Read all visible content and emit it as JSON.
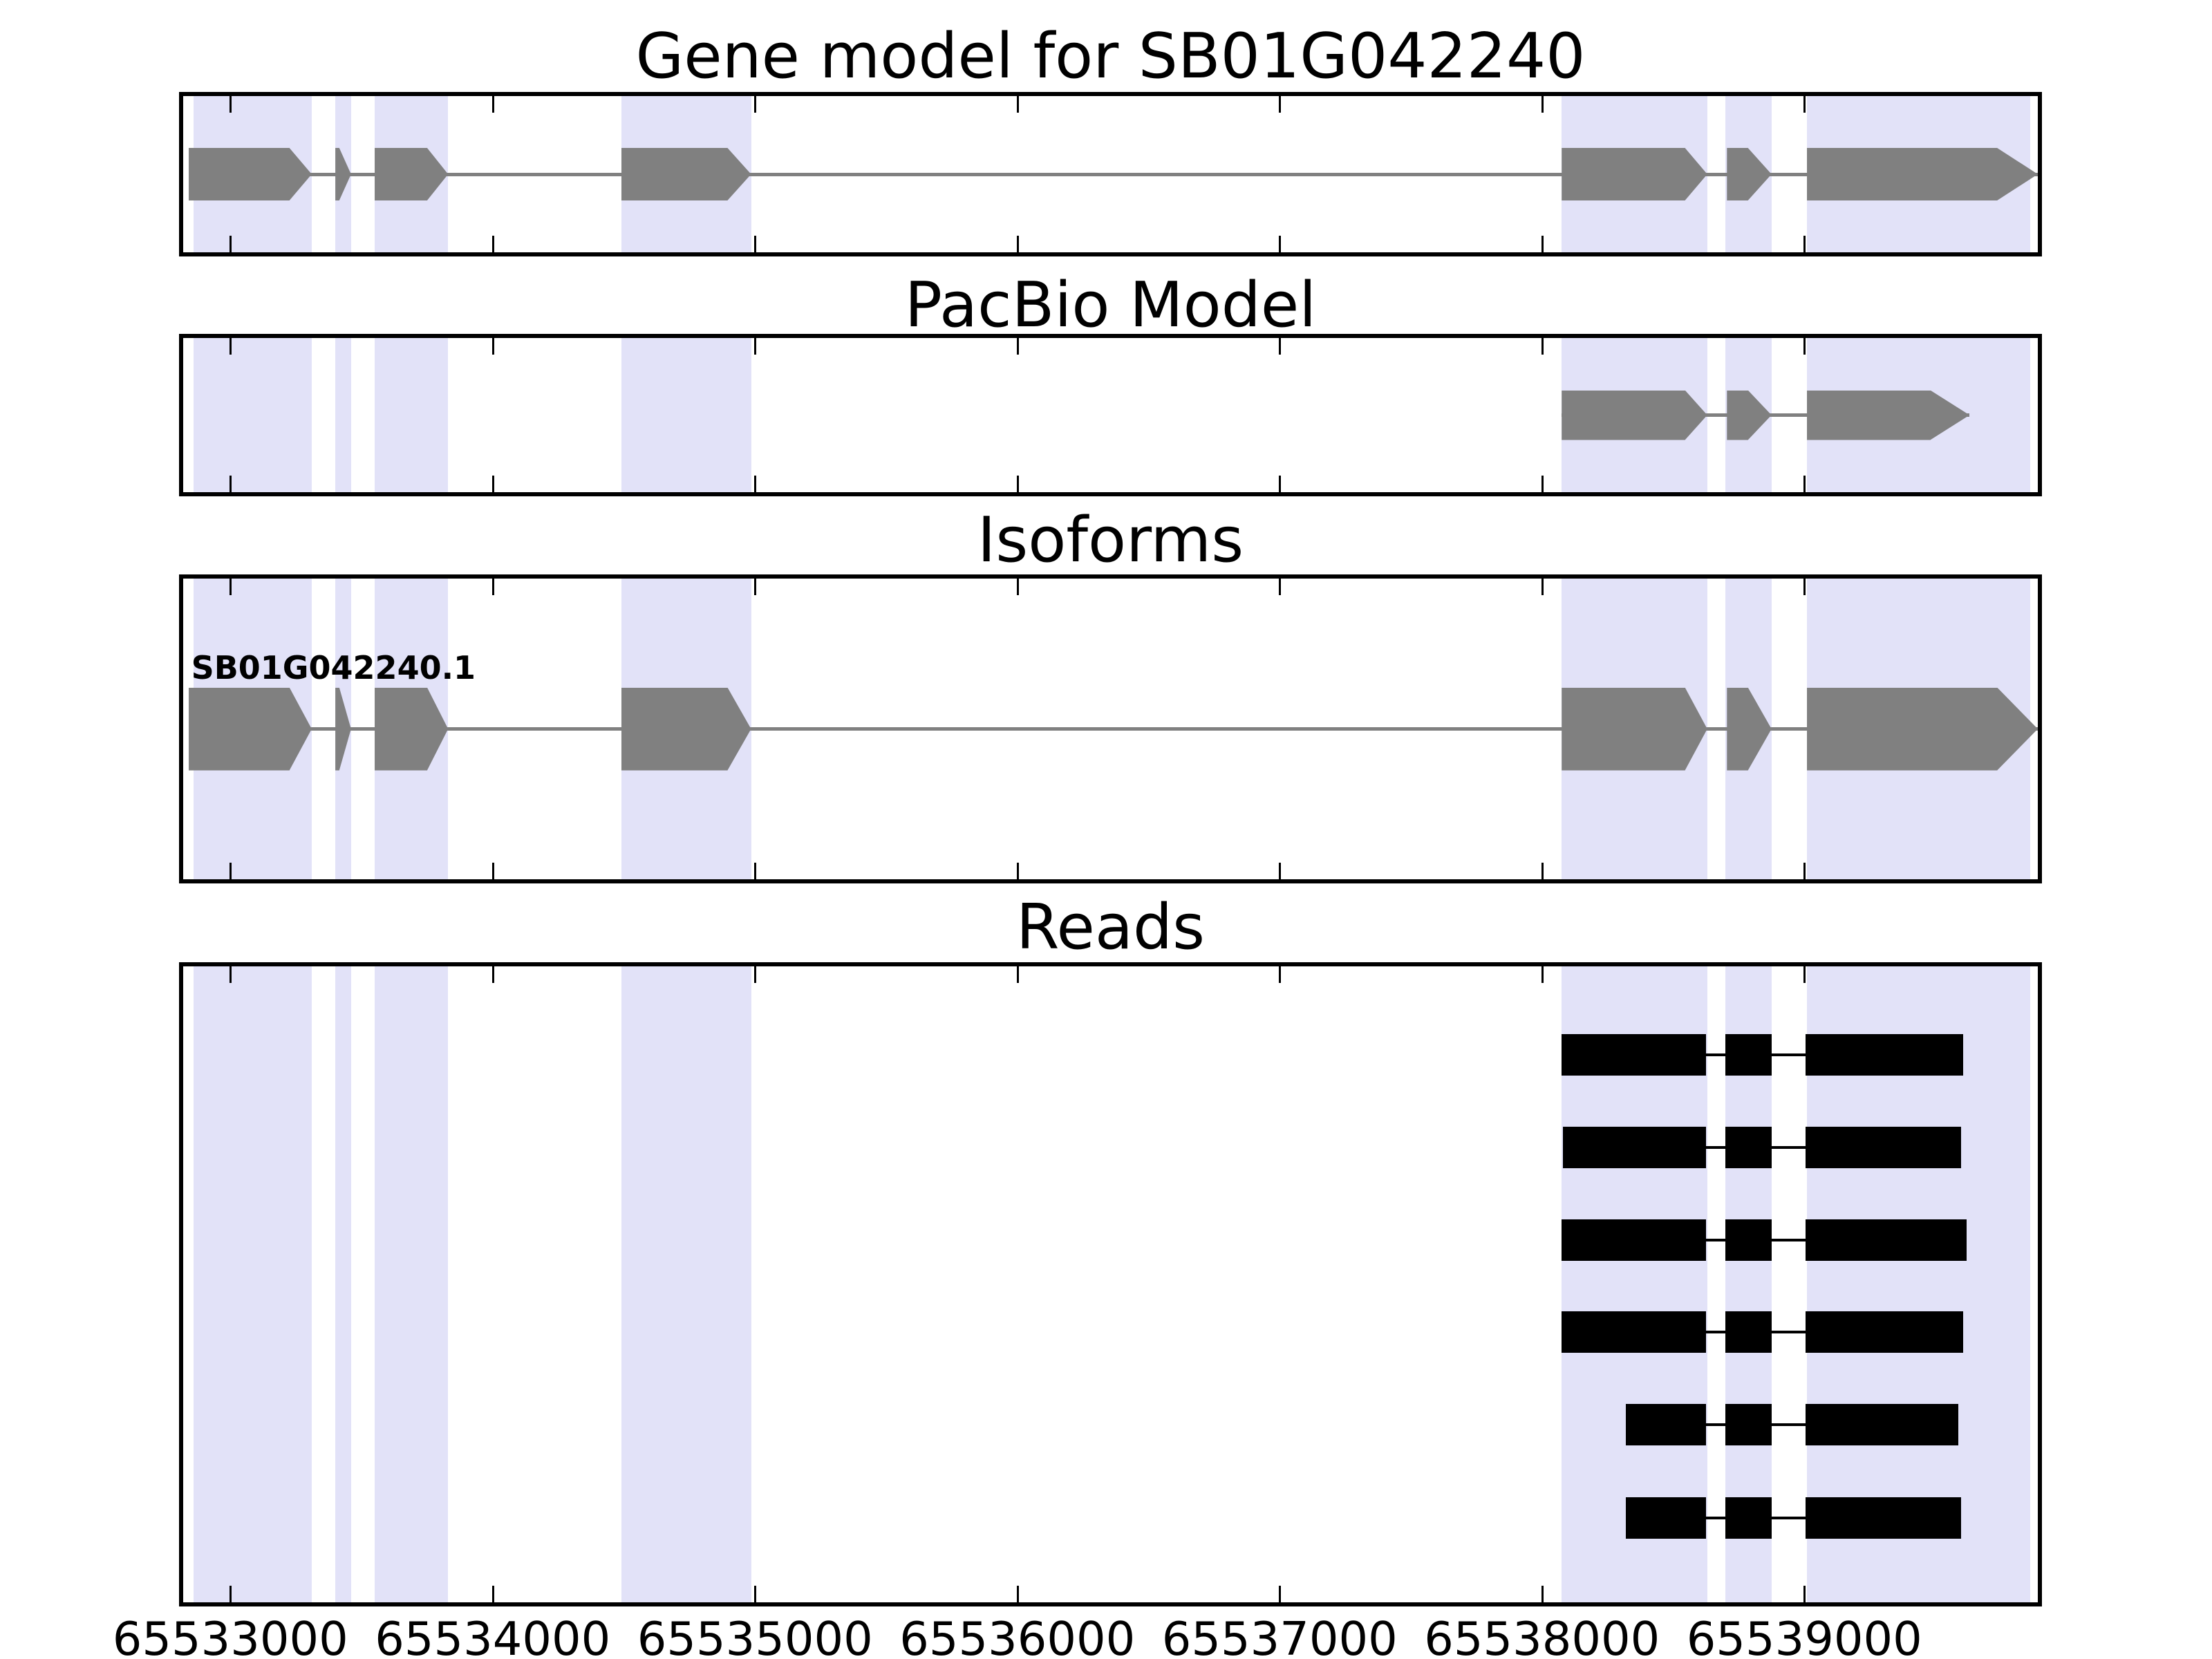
{
  "titles": {
    "gene_model": "Gene model for SB01G042240",
    "pacbio": "PacBio Model",
    "isoforms": "Isoforms",
    "reads": "Reads"
  },
  "isoform_track": {
    "label": "SB01G042240.1"
  },
  "colors": {
    "highlight_band": "#e2e2f8",
    "exon_fill": "#808080",
    "intron_line": "#808080",
    "read_fill": "#000000",
    "read_line": "#000000",
    "axis_line": "#000000",
    "text": "#000000"
  },
  "chart_data": {
    "type": "gene-model-tracks",
    "title": "Gene model for SB01G042240",
    "x_axis": {
      "min_bp": 65532820,
      "max_bp": 65539890,
      "ticks_bp": [
        65533000,
        65534000,
        65535000,
        65536000,
        65537000,
        65538000,
        65539000
      ],
      "tick_labels": [
        "65533000",
        "65534000",
        "65535000",
        "65536000",
        "65537000",
        "65538000",
        "65539000"
      ],
      "grid": false
    },
    "highlight_regions_bp": [
      {
        "start": 65532860,
        "end": 65533310
      },
      {
        "start": 65533400,
        "end": 65533460
      },
      {
        "start": 65533550,
        "end": 65533830
      },
      {
        "start": 65534490,
        "end": 65534985
      },
      {
        "start": 65538075,
        "end": 65538630
      },
      {
        "start": 65538700,
        "end": 65538875
      },
      {
        "start": 65539010,
        "end": 65539860
      }
    ],
    "tracks": [
      {
        "name": "Gene model for SB01G042240",
        "kind": "transcript",
        "strand": "+",
        "exons": [
          {
            "start": 65532840,
            "end": 65533310,
            "head_bp": 85
          },
          {
            "start": 65533400,
            "end": 65533460,
            "head_bp": 45
          },
          {
            "start": 65533550,
            "end": 65533830,
            "head_bp": 80
          },
          {
            "start": 65534490,
            "end": 65534985,
            "head_bp": 90
          },
          {
            "start": 65538075,
            "end": 65538630,
            "head_bp": 85
          },
          {
            "start": 65538705,
            "end": 65538875,
            "head_bp": 90
          },
          {
            "start": 65539010,
            "end": 65539890,
            "head_bp": 155
          }
        ]
      },
      {
        "name": "PacBio Model",
        "kind": "transcript",
        "strand": "+",
        "exons": [
          {
            "start": 65538075,
            "end": 65538630,
            "head_bp": 85
          },
          {
            "start": 65538705,
            "end": 65538875,
            "head_bp": 90
          },
          {
            "start": 65539010,
            "end": 65539630,
            "head_bp": 150
          }
        ]
      },
      {
        "name": "Isoforms",
        "kind": "transcript",
        "label": "SB01G042240.1",
        "strand": "+",
        "exons": [
          {
            "start": 65532840,
            "end": 65533310,
            "head_bp": 85
          },
          {
            "start": 65533400,
            "end": 65533460,
            "head_bp": 45
          },
          {
            "start": 65533550,
            "end": 65533830,
            "head_bp": 80
          },
          {
            "start": 65534490,
            "end": 65534985,
            "head_bp": 90
          },
          {
            "start": 65538075,
            "end": 65538630,
            "head_bp": 85
          },
          {
            "start": 65538705,
            "end": 65538875,
            "head_bp": 90
          },
          {
            "start": 65539010,
            "end": 65539890,
            "head_bp": 155
          }
        ]
      },
      {
        "name": "Reads",
        "kind": "reads",
        "reads": [
          {
            "segments": [
              [
                65538075,
                65538625
              ],
              [
                65538700,
                65538875
              ],
              [
                65539005,
                65539605
              ]
            ]
          },
          {
            "segments": [
              [
                65538080,
                65538625
              ],
              [
                65538700,
                65538875
              ],
              [
                65539005,
                65539598
              ]
            ]
          },
          {
            "segments": [
              [
                65538075,
                65538625
              ],
              [
                65538700,
                65538875
              ],
              [
                65539005,
                65539618
              ]
            ]
          },
          {
            "segments": [
              [
                65538075,
                65538625
              ],
              [
                65538700,
                65538875
              ],
              [
                65539005,
                65539605
              ]
            ]
          },
          {
            "segments": [
              [
                65538320,
                65538625
              ],
              [
                65538700,
                65538875
              ],
              [
                65539005,
                65539588
              ]
            ]
          },
          {
            "segments": [
              [
                65538320,
                65538625
              ],
              [
                65538700,
                65538875
              ],
              [
                65539005,
                65539598
              ]
            ]
          }
        ]
      }
    ]
  }
}
